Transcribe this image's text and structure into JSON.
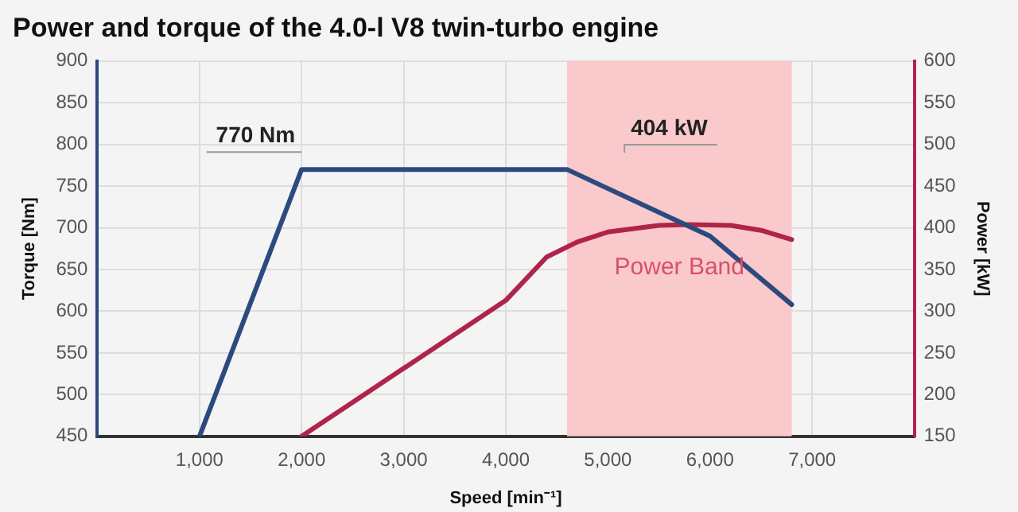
{
  "chart_data": {
    "type": "line",
    "title": "Power and torque of the 4.0-l V8 twin-turbo engine",
    "xlabel": "Speed [min⁻¹]",
    "ylabel": "Torque [Nm]",
    "y2label": "Power [kW]",
    "series": [
      {
        "color": "#2c4a7e",
        "x": [
          1000,
          2000,
          4600,
          6000,
          6800
        ],
        "values": [
          450,
          770,
          770,
          690,
          608
        ]
      },
      {
        "color": "#b0234a",
        "axis": "y2",
        "x": [
          2000,
          4000,
          4400,
          4700,
          5000,
          5500,
          5800,
          6200,
          6500,
          6800
        ],
        "values": [
          150,
          313,
          365,
          383,
          395,
          403,
          404,
          403,
          397,
          386
        ]
      }
    ],
    "xlim": [
      0,
      8000
    ],
    "xticks": [
      {
        "value": 1000,
        "label": "1,000"
      },
      {
        "value": 2000,
        "label": "2,000"
      },
      {
        "value": 3000,
        "label": "3,000"
      },
      {
        "value": 4000,
        "label": "4,000"
      },
      {
        "value": 5000,
        "label": "5,000"
      },
      {
        "value": 6000,
        "label": "6,000"
      },
      {
        "value": 7000,
        "label": "7,000"
      }
    ],
    "ylim": [
      450,
      900
    ],
    "yticks": [
      450,
      500,
      550,
      600,
      650,
      700,
      750,
      800,
      850,
      900
    ],
    "y2lim": [
      150,
      600
    ],
    "y2ticks": [
      150,
      200,
      250,
      300,
      350,
      400,
      450,
      500,
      550,
      600
    ],
    "bands": [
      {
        "axis": "x",
        "from": 4600,
        "to": 6800,
        "label": "Power Band",
        "color": "#f9c9cc"
      }
    ],
    "annotations": [
      {
        "text": "770 Nm",
        "x": 2000,
        "y": 770
      },
      "404 kW"
    ],
    "grid": true,
    "legend": false,
    "marker": "none",
    "line_style": "solid"
  }
}
